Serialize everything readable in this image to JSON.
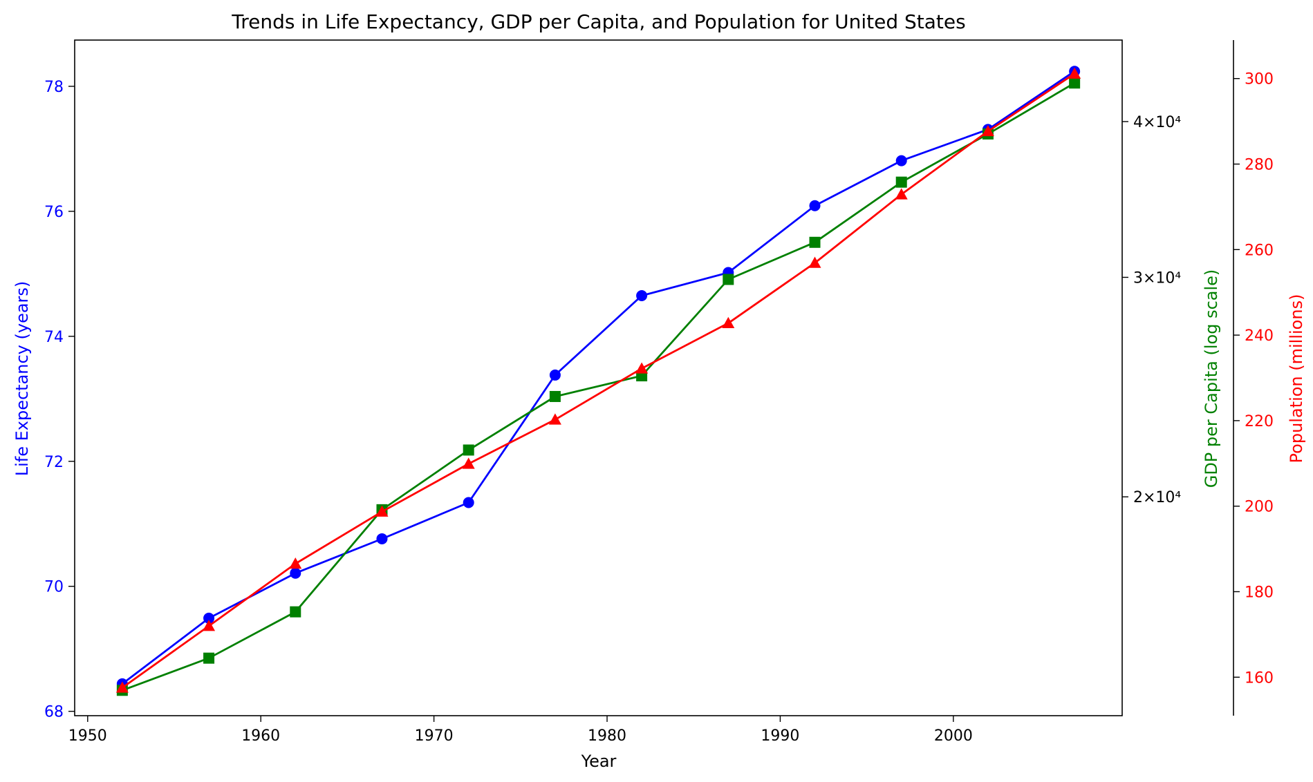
{
  "chart_data": {
    "type": "line",
    "title": "Trends in Life Expectancy, GDP per Capita, and Population for United States",
    "xlabel": "Year",
    "x": [
      1952,
      1957,
      1962,
      1967,
      1972,
      1977,
      1982,
      1987,
      1992,
      1997,
      2002,
      2007
    ],
    "x_ticks": [
      1950,
      1960,
      1970,
      1980,
      1990,
      2000
    ],
    "xlim": [
      1949.25,
      2009.75
    ],
    "grid": false,
    "series": [
      {
        "axis": "left",
        "label": "Life Expectancy (years)",
        "color": "#0000ff",
        "marker": "circle",
        "scale": "linear",
        "ylim": [
          67.93,
          78.74
        ],
        "ticks": [
          68,
          70,
          72,
          74,
          76,
          78
        ],
        "tick_labels": [
          "68",
          "70",
          "72",
          "74",
          "76",
          "78"
        ],
        "values": [
          68.44,
          69.49,
          70.21,
          70.76,
          71.34,
          73.38,
          74.65,
          75.02,
          76.09,
          76.81,
          77.31,
          78.24
        ]
      },
      {
        "axis": "right",
        "label": "GDP per Capita (log scale)",
        "color": "#008000",
        "marker": "square",
        "scale": "log",
        "ylim": [
          13350,
          46500
        ],
        "ticks": [
          20000,
          30000,
          40000
        ],
        "tick_labels": [
          "2×10⁴",
          "3×10⁴",
          "4×10⁴"
        ],
        "values": [
          13990,
          14847,
          16173,
          19530,
          21806,
          24073,
          25010,
          29884,
          32004,
          35767,
          39097,
          42952
        ]
      },
      {
        "axis": "right-outer",
        "label": "Population (millions)",
        "color": "#ff0000",
        "marker": "triangle",
        "scale": "linear",
        "ylim": [
          151,
          309
        ],
        "ticks": [
          160,
          180,
          200,
          220,
          240,
          260,
          280,
          300
        ],
        "tick_labels": [
          "160",
          "180",
          "200",
          "220",
          "240",
          "260",
          "280",
          "300"
        ],
        "values": [
          157.55,
          171.98,
          186.54,
          198.71,
          209.9,
          220.24,
          232.19,
          242.8,
          256.89,
          272.91,
          287.68,
          301.14
        ]
      }
    ]
  }
}
